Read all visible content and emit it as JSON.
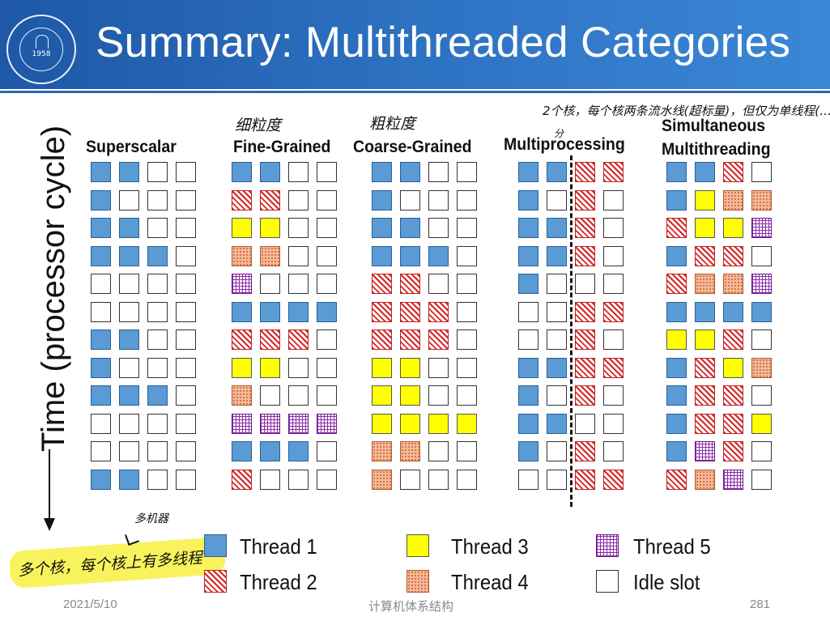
{
  "slide": {
    "title": "Summary: Multithreaded Categories",
    "y_axis_label": "Time (processor cycle)",
    "logo": {
      "year": "1958"
    }
  },
  "columns": [
    {
      "title_lines": [
        "Superscalar"
      ],
      "rows": [
        [
          1,
          1,
          0,
          0
        ],
        [
          1,
          0,
          0,
          0
        ],
        [
          1,
          1,
          0,
          0
        ],
        [
          1,
          1,
          1,
          0
        ],
        [
          0,
          0,
          0,
          0
        ],
        [
          0,
          0,
          0,
          0
        ],
        [
          1,
          1,
          0,
          0
        ],
        [
          1,
          0,
          0,
          0
        ],
        [
          1,
          1,
          1,
          0
        ],
        [
          0,
          0,
          0,
          0
        ],
        [
          0,
          0,
          0,
          0
        ],
        [
          1,
          1,
          0,
          0
        ]
      ]
    },
    {
      "title_lines": [
        "Fine-Grained"
      ],
      "rows": [
        [
          1,
          1,
          0,
          0
        ],
        [
          2,
          2,
          0,
          0
        ],
        [
          3,
          3,
          0,
          0
        ],
        [
          4,
          4,
          0,
          0
        ],
        [
          5,
          0,
          0,
          0
        ],
        [
          1,
          1,
          1,
          1
        ],
        [
          2,
          2,
          2,
          0
        ],
        [
          3,
          3,
          0,
          0
        ],
        [
          4,
          0,
          0,
          0
        ],
        [
          5,
          5,
          5,
          5
        ],
        [
          1,
          1,
          1,
          0
        ],
        [
          2,
          0,
          0,
          0
        ]
      ]
    },
    {
      "title_lines": [
        "Coarse-Grained"
      ],
      "rows": [
        [
          1,
          1,
          0,
          0
        ],
        [
          1,
          0,
          0,
          0
        ],
        [
          1,
          1,
          0,
          0
        ],
        [
          1,
          1,
          1,
          0
        ],
        [
          2,
          2,
          0,
          0
        ],
        [
          2,
          2,
          2,
          0
        ],
        [
          2,
          2,
          2,
          0
        ],
        [
          3,
          3,
          0,
          0
        ],
        [
          3,
          3,
          0,
          0
        ],
        [
          3,
          3,
          3,
          3
        ],
        [
          4,
          4,
          0,
          0
        ],
        [
          4,
          0,
          0,
          0
        ]
      ]
    },
    {
      "title_lines": [
        "Multiprocessing"
      ],
      "rows": [
        [
          1,
          1,
          2,
          2
        ],
        [
          1,
          0,
          2,
          0
        ],
        [
          1,
          1,
          2,
          0
        ],
        [
          1,
          1,
          2,
          0
        ],
        [
          1,
          0,
          0,
          0
        ],
        [
          0,
          0,
          2,
          2
        ],
        [
          0,
          0,
          2,
          0
        ],
        [
          1,
          1,
          2,
          2
        ],
        [
          1,
          0,
          2,
          0
        ],
        [
          1,
          1,
          0,
          0
        ],
        [
          1,
          0,
          2,
          0
        ],
        [
          0,
          0,
          2,
          2
        ]
      ]
    },
    {
      "title_lines": [
        "Simultaneous",
        "Multithreading"
      ],
      "rows": [
        [
          1,
          1,
          2,
          0
        ],
        [
          1,
          3,
          4,
          4
        ],
        [
          2,
          3,
          3,
          5
        ],
        [
          1,
          2,
          2,
          0
        ],
        [
          2,
          4,
          4,
          5
        ],
        [
          1,
          1,
          1,
          1
        ],
        [
          3,
          3,
          2,
          0
        ],
        [
          1,
          2,
          3,
          4
        ],
        [
          1,
          2,
          2,
          0
        ],
        [
          1,
          2,
          2,
          3
        ],
        [
          1,
          5,
          2,
          0
        ],
        [
          2,
          4,
          5,
          0
        ]
      ]
    }
  ],
  "legend": [
    {
      "label": "Thread 1",
      "kind": "t1"
    },
    {
      "label": "Thread 2",
      "kind": "t2"
    },
    {
      "label": "Thread 3",
      "kind": "t3"
    },
    {
      "label": "Thread 4",
      "kind": "t4"
    },
    {
      "label": "Thread 5",
      "kind": "t5"
    },
    {
      "label": "Idle slot",
      "kind": "idle"
    }
  ],
  "annotations": {
    "fine_note": "细粒度",
    "coarse_note": "粗粒度",
    "multi_note": "2个核，每个核两条流水线(超标量)，但仅为单线程(…",
    "multi_sub": "分",
    "bottom_note": "多个核，每个核上有多线程",
    "bottom_hint": "多机器"
  },
  "footer": {
    "date": "2021/5/10",
    "course": "计算机体系结构",
    "page": "281"
  }
}
